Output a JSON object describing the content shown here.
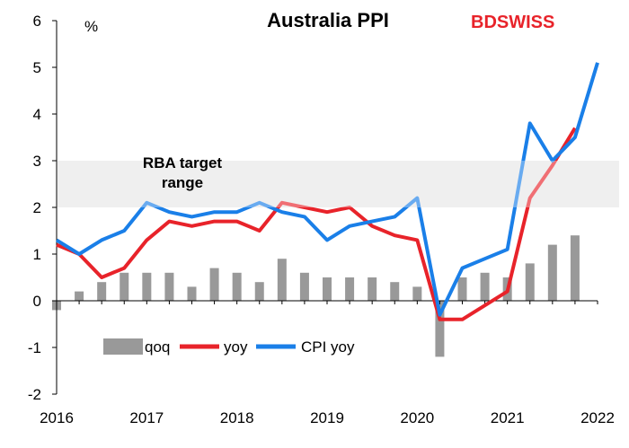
{
  "chart_data": {
    "type": "line",
    "title": "Australia PPI",
    "y_unit": "%",
    "ylim": [
      -2,
      6
    ],
    "y_ticks": [
      -2,
      -1,
      0,
      1,
      2,
      3,
      4,
      5,
      6
    ],
    "x_ticks": [
      "2016",
      "2017",
      "2018",
      "2019",
      "2020",
      "2021",
      "2022"
    ],
    "xlim": [
      2016,
      2022
    ],
    "grid": false,
    "legend_position": "bottom-left",
    "band": {
      "label": "RBA target range",
      "label_lines": [
        "RBA target",
        "range"
      ],
      "from": 2,
      "to": 3,
      "color": "#e6e6e6"
    },
    "series": [
      {
        "name": "qoq",
        "kind": "bar",
        "color": "#999999",
        "x": [
          2016.0,
          2016.25,
          2016.5,
          2016.75,
          2017.0,
          2017.25,
          2017.5,
          2017.75,
          2018.0,
          2018.25,
          2018.5,
          2018.75,
          2019.0,
          2019.25,
          2019.5,
          2019.75,
          2020.0,
          2020.25,
          2020.5,
          2020.75,
          2021.0,
          2021.25,
          2021.5,
          2021.75
        ],
        "values": [
          -0.2,
          0.2,
          0.4,
          0.6,
          0.6,
          0.6,
          0.3,
          0.7,
          0.6,
          0.4,
          0.9,
          0.6,
          0.5,
          0.5,
          0.5,
          0.4,
          0.3,
          -1.2,
          0.5,
          0.6,
          0.5,
          0.8,
          1.2,
          1.4
        ]
      },
      {
        "name": "yoy",
        "kind": "line",
        "color": "#e8232a",
        "x": [
          2016.0,
          2016.25,
          2016.5,
          2016.75,
          2017.0,
          2017.25,
          2017.5,
          2017.75,
          2018.0,
          2018.25,
          2018.5,
          2018.75,
          2019.0,
          2019.25,
          2019.5,
          2019.75,
          2020.0,
          2020.25,
          2020.5,
          2020.75,
          2021.0,
          2021.25,
          2021.5,
          2021.75
        ],
        "values": [
          1.2,
          1.0,
          0.5,
          0.7,
          1.3,
          1.7,
          1.6,
          1.7,
          1.7,
          1.5,
          2.1,
          2.0,
          1.9,
          2.0,
          1.6,
          1.4,
          1.3,
          -0.4,
          -0.4,
          -0.1,
          0.2,
          2.2,
          2.9,
          3.7
        ]
      },
      {
        "name": "CPI yoy",
        "kind": "line",
        "color": "#1a7fe8",
        "x": [
          2016.0,
          2016.25,
          2016.5,
          2016.75,
          2017.0,
          2017.25,
          2017.5,
          2017.75,
          2018.0,
          2018.25,
          2018.5,
          2018.75,
          2019.0,
          2019.25,
          2019.5,
          2019.75,
          2020.0,
          2020.25,
          2020.5,
          2020.75,
          2021.0,
          2021.25,
          2021.5,
          2021.75,
          2022.0
        ],
        "values": [
          1.3,
          1.0,
          1.3,
          1.5,
          2.1,
          1.9,
          1.8,
          1.9,
          1.9,
          2.1,
          1.9,
          1.8,
          1.3,
          1.6,
          1.7,
          1.8,
          2.2,
          -0.3,
          0.7,
          0.9,
          1.1,
          3.8,
          3.0,
          3.5,
          5.1
        ]
      }
    ]
  },
  "logo": {
    "part1": "BD",
    "part2": "SWISS",
    "color1": "#e8232a",
    "color2": "#e8232a"
  }
}
